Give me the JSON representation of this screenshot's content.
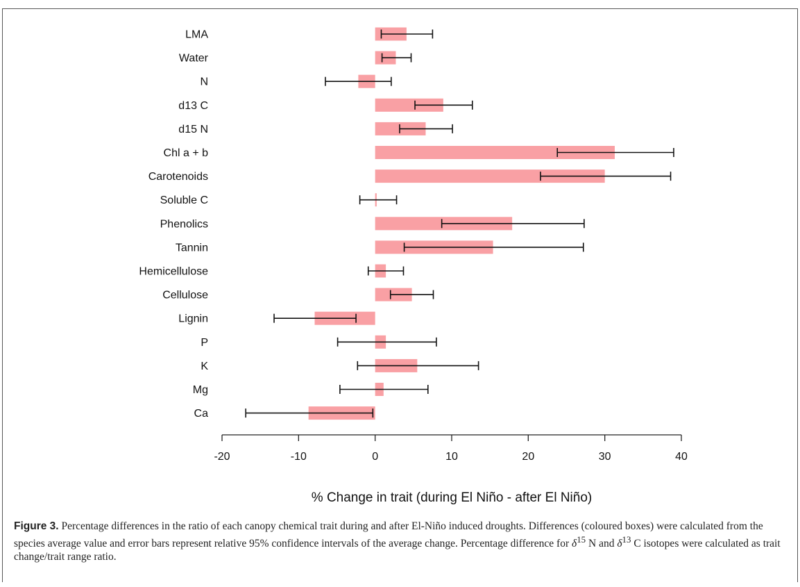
{
  "chart_data": {
    "type": "bar",
    "orientation": "horizontal",
    "categories": [
      "LMA",
      "Water",
      "N",
      "d13 C",
      "d15 N",
      "Chl a + b",
      "Carotenoids",
      "Soluble C",
      "Phenolics",
      "Tannin",
      "Hemicellulose",
      "Cellulose",
      "Lignin",
      "P",
      "K",
      "Mg",
      "Ca"
    ],
    "values": [
      4.1,
      2.7,
      -2.2,
      8.9,
      6.6,
      31.3,
      30.0,
      0.2,
      17.9,
      15.4,
      1.4,
      4.8,
      -7.9,
      1.4,
      5.5,
      1.1,
      -8.7
    ],
    "error_low": [
      0.8,
      0.9,
      -6.5,
      5.2,
      3.2,
      23.8,
      21.6,
      -2.0,
      8.7,
      3.8,
      -0.9,
      2.0,
      -13.2,
      -4.9,
      -2.3,
      -4.6,
      -16.9
    ],
    "error_high": [
      7.5,
      4.7,
      2.1,
      12.7,
      10.1,
      39.0,
      38.6,
      2.8,
      27.3,
      27.2,
      3.7,
      7.6,
      -2.5,
      8.0,
      13.5,
      6.9,
      -0.3
    ],
    "xlabel": "% Change in trait (during El Niño - after El Niño)",
    "xlim": [
      -20,
      40
    ],
    "xticks": [
      -20,
      -10,
      0,
      10,
      20,
      30,
      40
    ],
    "xtick_labels": [
      "-20",
      "-10",
      "0",
      "10",
      "20",
      "30",
      "40"
    ],
    "bar_color": "#f9a0a4",
    "errorbar_color": "#111111",
    "grid": false
  },
  "caption": {
    "label": "Figure 3.",
    "text_part1": "Percentage differences in the ratio of each canopy chemical trait during and after El-Niño induced droughts. Differences (coloured boxes) were calculated from the species average value and error bars represent relative 95% confidence intervals of the average change. Percentage difference for ",
    "delta": "δ",
    "sup1": "15",
    "mid1": " N and ",
    "sup2": "13",
    "text_part2": " C isotopes were calculated as trait change/trait range ratio."
  }
}
